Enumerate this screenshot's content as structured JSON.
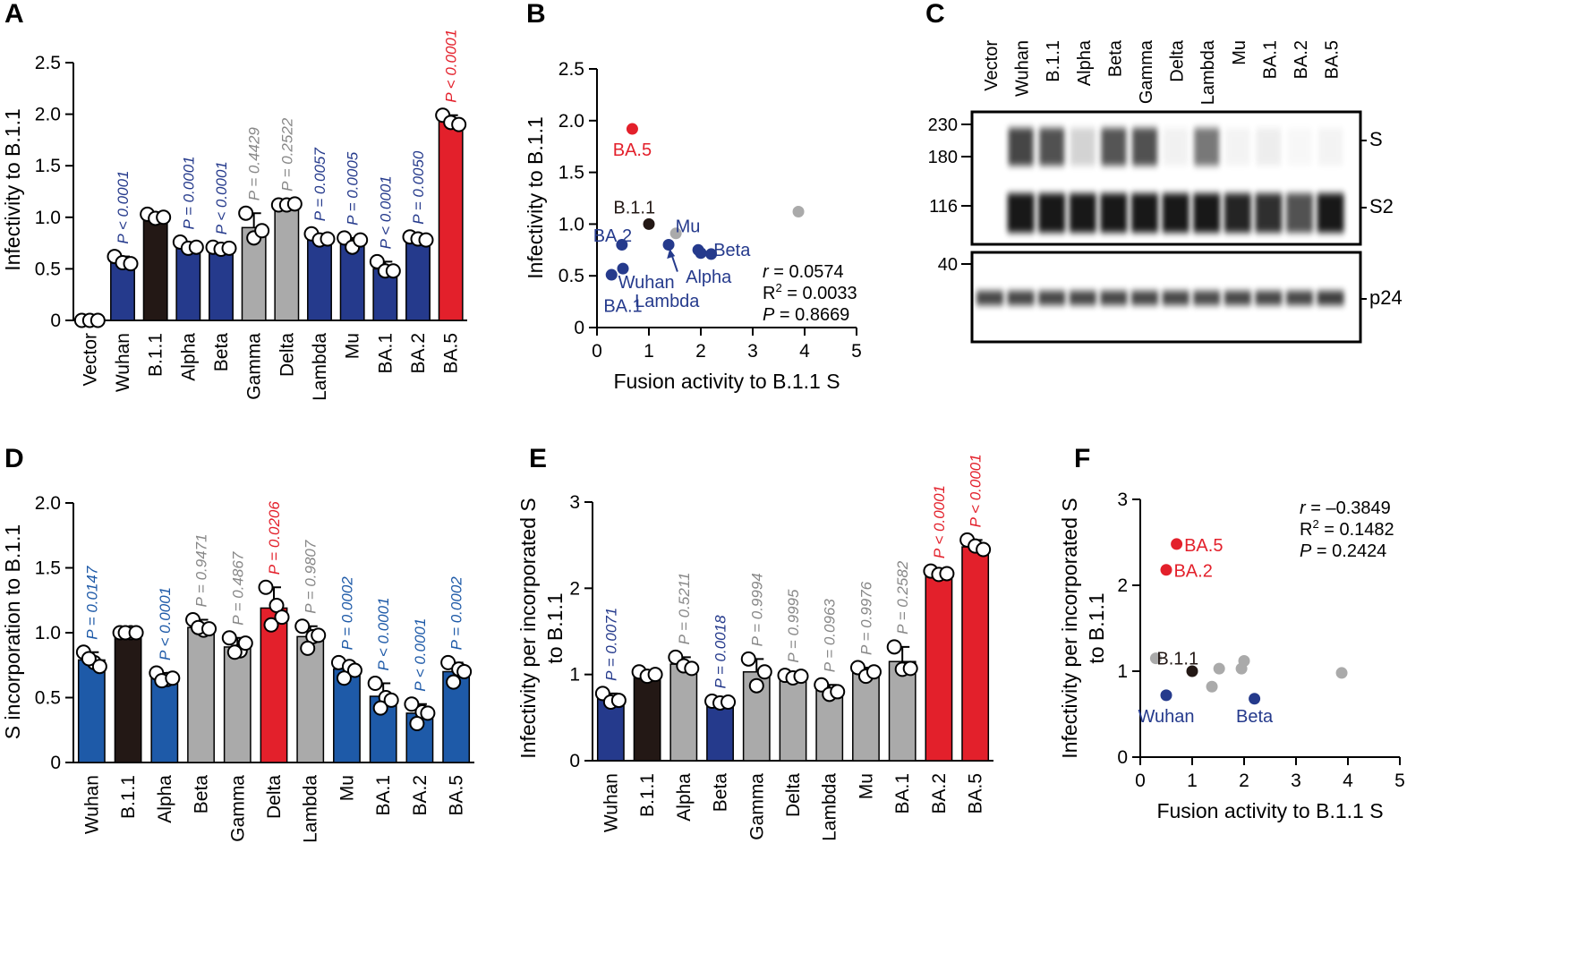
{
  "colors": {
    "blue": "#253a8c",
    "blue_d": "#1e5aa8",
    "black": "#231815",
    "gray": "#aaaaaa",
    "pgray": "#888888",
    "red": "#e3202b"
  },
  "panels": {
    "A": "A",
    "B": "B",
    "C": "C",
    "D": "D",
    "E": "E",
    "F": "F"
  },
  "chart_data": [
    {
      "id": "A",
      "type": "bar",
      "ylabel": "Infectivity to B.1.1",
      "ylim": [
        0,
        2.5
      ],
      "ticks": [
        0,
        0.5,
        1.0,
        1.5,
        2.0,
        2.5
      ],
      "tick_labels": [
        "0",
        "0.5",
        "1.0",
        "1.5",
        "2.0",
        "2.5"
      ],
      "bars": [
        {
          "label": "Vector",
          "value": 0.0,
          "points": [
            0.0,
            0.0,
            0.0
          ],
          "color": "blue",
          "p": ""
        },
        {
          "label": "Wuhan",
          "value": 0.57,
          "points": [
            0.62,
            0.56,
            0.55
          ],
          "color": "blue",
          "p": "P < 0.0001"
        },
        {
          "label": "B.1.1",
          "value": 1.0,
          "points": [
            1.03,
            0.99,
            1.0
          ],
          "color": "black",
          "p": ""
        },
        {
          "label": "Alpha",
          "value": 0.72,
          "points": [
            0.76,
            0.7,
            0.71
          ],
          "color": "blue",
          "p": "P = 0.0001"
        },
        {
          "label": "Beta",
          "value": 0.7,
          "points": [
            0.71,
            0.69,
            0.7
          ],
          "color": "blue",
          "p": "P < 0.0001"
        },
        {
          "label": "Gamma",
          "value": 0.9,
          "points": [
            1.04,
            0.8,
            0.87
          ],
          "color": "gray",
          "p": "P = 0.4429"
        },
        {
          "label": "Delta",
          "value": 1.12,
          "points": [
            1.12,
            1.12,
            1.13
          ],
          "color": "gray",
          "p": "P = 0.2522"
        },
        {
          "label": "Lambda",
          "value": 0.8,
          "points": [
            0.84,
            0.78,
            0.79
          ],
          "color": "blue",
          "p": "P = 0.0057"
        },
        {
          "label": "Mu",
          "value": 0.76,
          "points": [
            0.8,
            0.71,
            0.78
          ],
          "color": "blue",
          "p": "P = 0.0005"
        },
        {
          "label": "BA.1",
          "value": 0.5,
          "points": [
            0.57,
            0.48,
            0.48
          ],
          "color": "blue",
          "p": "P < 0.0001"
        },
        {
          "label": "BA.2",
          "value": 0.79,
          "points": [
            0.81,
            0.79,
            0.78
          ],
          "color": "blue",
          "p": "P = 0.0050"
        },
        {
          "label": "BA.5",
          "value": 1.93,
          "points": [
            1.99,
            1.92,
            1.9
          ],
          "color": "red",
          "p": "P < 0.0001"
        }
      ]
    },
    {
      "id": "B",
      "type": "scatter",
      "xlabel": "Fusion activity to B.1.1 S",
      "ylabel": "Infectivity to B.1.1",
      "xlim": [
        0,
        5
      ],
      "ylim": [
        0,
        2.5
      ],
      "xticks": [
        0,
        1,
        2,
        3,
        4,
        5
      ],
      "xtick_labels": [
        "0",
        "1",
        "2",
        "3",
        "4",
        "5"
      ],
      "yticks": [
        0,
        0.5,
        1.0,
        1.5,
        2.0,
        2.5
      ],
      "ytick_labels": [
        "0",
        "0.5",
        "1.0",
        "1.5",
        "2.0",
        "2.5"
      ],
      "points": [
        {
          "x": 0.68,
          "y": 1.92,
          "color": "red"
        },
        {
          "x": 1.0,
          "y": 1.0,
          "color": "black"
        },
        {
          "x": 0.48,
          "y": 0.8,
          "color": "blue"
        },
        {
          "x": 0.5,
          "y": 0.57,
          "color": "blue"
        },
        {
          "x": 0.28,
          "y": 0.51,
          "color": "blue"
        },
        {
          "x": 1.52,
          "y": 0.91,
          "color": "gray"
        },
        {
          "x": 1.38,
          "y": 0.8,
          "color": "blue"
        },
        {
          "x": 1.95,
          "y": 0.75,
          "color": "blue"
        },
        {
          "x": 2.0,
          "y": 0.72,
          "color": "blue"
        },
        {
          "x": 2.2,
          "y": 0.71,
          "color": "blue"
        },
        {
          "x": 3.88,
          "y": 1.12,
          "color": "gray"
        }
      ],
      "annotations": [
        {
          "text": "BA.5",
          "x": 0.68,
          "y": 1.73,
          "color": "red"
        },
        {
          "text": "B.1.1",
          "x": 0.72,
          "y": 1.17,
          "color": "black"
        },
        {
          "text": "BA.2",
          "x": 0.3,
          "y": 0.9,
          "color": "blue"
        },
        {
          "text": "Mu",
          "x": 1.75,
          "y": 0.99,
          "color": "blue"
        },
        {
          "text": "Beta",
          "x": 2.6,
          "y": 0.76,
          "color": "blue"
        },
        {
          "text": "Alpha",
          "x": 2.15,
          "y": 0.5,
          "color": "blue"
        },
        {
          "text": "Wuhan",
          "x": 0.95,
          "y": 0.45,
          "color": "blue"
        },
        {
          "text": "Lambda",
          "x": 1.35,
          "y": 0.27,
          "color": "blue"
        },
        {
          "text": "BA.1",
          "x": 0.5,
          "y": 0.22,
          "color": "blue"
        }
      ],
      "stats": {
        "r": "r",
        "r_val": " = 0.0574",
        "r2": "R",
        "r2_sup": "2",
        "r2_val": " = 0.0033",
        "p": "P",
        "p_val": " = 0.8669"
      }
    },
    {
      "id": "D",
      "type": "bar",
      "ylabel": "S incorporation to B.1.1",
      "ylim": [
        0,
        2.0
      ],
      "ticks": [
        0,
        0.5,
        1.0,
        1.5,
        2.0
      ],
      "tick_labels": [
        "0",
        "0.5",
        "1.0",
        "1.5",
        "2.0"
      ],
      "bars": [
        {
          "label": "Wuhan",
          "value": 0.79,
          "points": [
            0.85,
            0.77,
            0.8,
            0.74
          ],
          "color": "blue_d",
          "p": "P = 0.0147"
        },
        {
          "label": "B.1.1",
          "value": 1.0,
          "points": [
            1.0,
            1.0,
            1.0,
            1.0
          ],
          "color": "black",
          "p": ""
        },
        {
          "label": "Alpha",
          "value": 0.65,
          "points": [
            0.69,
            0.64,
            0.63,
            0.65
          ],
          "color": "blue_d",
          "p": "P < 0.0001"
        },
        {
          "label": "Beta",
          "value": 1.04,
          "points": [
            1.1,
            1.02,
            1.04,
            1.03
          ],
          "color": "gray",
          "p": "P = 0.9471"
        },
        {
          "label": "Gamma",
          "value": 0.89,
          "points": [
            0.96,
            0.86,
            0.85,
            0.92
          ],
          "color": "gray",
          "p": "P = 0.4867"
        },
        {
          "label": "Delta",
          "value": 1.19,
          "points": [
            1.35,
            1.21,
            1.06,
            1.12
          ],
          "color": "red",
          "p": "P = 0.0206"
        },
        {
          "label": "Lambda",
          "value": 0.97,
          "points": [
            1.05,
            0.97,
            0.88,
            0.98
          ],
          "color": "gray",
          "p": "P = 0.9807"
        },
        {
          "label": "Mu",
          "value": 0.72,
          "points": [
            0.77,
            0.74,
            0.65,
            0.71
          ],
          "color": "blue_d",
          "p": "P = 0.0002"
        },
        {
          "label": "BA.1",
          "value": 0.51,
          "points": [
            0.61,
            0.5,
            0.42,
            0.48
          ],
          "color": "blue_d",
          "p": "P < 0.0001"
        },
        {
          "label": "BA.2",
          "value": 0.38,
          "points": [
            0.45,
            0.39,
            0.3,
            0.38
          ],
          "color": "blue_d",
          "p": "P < 0.0001"
        },
        {
          "label": "BA.5",
          "value": 0.7,
          "points": [
            0.77,
            0.72,
            0.62,
            0.7
          ],
          "color": "blue_d",
          "p": "P = 0.0002"
        }
      ]
    },
    {
      "id": "E",
      "type": "bar",
      "ylabel": "Infectivity per incorporated S",
      "ylabel2": "to B.1.1",
      "ylim": [
        0,
        3
      ],
      "ticks": [
        0,
        1,
        2,
        3
      ],
      "tick_labels": [
        "0",
        "1",
        "2",
        "3"
      ],
      "bars": [
        {
          "label": "Wuhan",
          "value": 0.72,
          "points": [
            0.78,
            0.68,
            0.7
          ],
          "color": "blue",
          "p": "P = 0.0071"
        },
        {
          "label": "B.1.1",
          "value": 1.0,
          "points": [
            1.03,
            0.98,
            1.0
          ],
          "color": "black",
          "p": ""
        },
        {
          "label": "Alpha",
          "value": 1.12,
          "points": [
            1.2,
            1.1,
            1.07
          ],
          "color": "gray",
          "p": "P = 0.5211"
        },
        {
          "label": "Beta",
          "value": 0.68,
          "points": [
            0.69,
            0.67,
            0.68
          ],
          "color": "blue",
          "p": "P = 0.0018"
        },
        {
          "label": "Gamma",
          "value": 1.03,
          "points": [
            1.18,
            0.87,
            1.03
          ],
          "color": "gray",
          "p": "P = 0.9994"
        },
        {
          "label": "Delta",
          "value": 0.98,
          "points": [
            0.99,
            0.96,
            0.98
          ],
          "color": "gray",
          "p": "P = 0.9995"
        },
        {
          "label": "Lambda",
          "value": 0.82,
          "points": [
            0.88,
            0.77,
            0.8
          ],
          "color": "gray",
          "p": "P = 0.0963"
        },
        {
          "label": "Mu",
          "value": 1.03,
          "points": [
            1.08,
            0.98,
            1.03
          ],
          "color": "gray",
          "p": "P = 0.9976"
        },
        {
          "label": "BA.1",
          "value": 1.15,
          "points": [
            1.32,
            1.06,
            1.07
          ],
          "color": "gray",
          "p": "P = 0.2582"
        },
        {
          "label": "BA.2",
          "value": 2.18,
          "points": [
            2.2,
            2.16,
            2.17
          ],
          "color": "red",
          "p": "P < 0.0001"
        },
        {
          "label": "BA.5",
          "value": 2.48,
          "points": [
            2.56,
            2.49,
            2.45
          ],
          "color": "red",
          "p": "P < 0.0001"
        }
      ]
    },
    {
      "id": "F",
      "type": "scatter",
      "xlabel": "Fusion activity to B.1.1 S",
      "ylabel": "Infectivity per incorporated S",
      "ylabel2": "to B.1.1",
      "xlim": [
        0,
        5
      ],
      "ylim": [
        0,
        3
      ],
      "xticks": [
        0,
        1,
        2,
        3,
        4,
        5
      ],
      "xtick_labels": [
        "0",
        "1",
        "2",
        "3",
        "4",
        "5"
      ],
      "yticks": [
        0,
        1,
        2,
        3
      ],
      "ytick_labels": [
        "0",
        "1",
        "2",
        "3"
      ],
      "points": [
        {
          "x": 0.7,
          "y": 2.48,
          "color": "red"
        },
        {
          "x": 0.5,
          "y": 2.18,
          "color": "red"
        },
        {
          "x": 1.0,
          "y": 1.0,
          "color": "black"
        },
        {
          "x": 0.3,
          "y": 1.15,
          "color": "gray"
        },
        {
          "x": 1.52,
          "y": 1.03,
          "color": "gray"
        },
        {
          "x": 1.38,
          "y": 0.82,
          "color": "gray"
        },
        {
          "x": 1.95,
          "y": 1.03,
          "color": "gray"
        },
        {
          "x": 2.0,
          "y": 1.12,
          "color": "gray"
        },
        {
          "x": 3.88,
          "y": 0.98,
          "color": "gray"
        },
        {
          "x": 0.5,
          "y": 0.72,
          "color": "blue"
        },
        {
          "x": 2.2,
          "y": 0.68,
          "color": "blue"
        }
      ],
      "annotations": [
        {
          "text": "BA.5",
          "x": 1.22,
          "y": 2.48,
          "color": "red"
        },
        {
          "text": "BA.2",
          "x": 1.02,
          "y": 2.18,
          "color": "red"
        },
        {
          "text": "B.1.1",
          "x": 0.72,
          "y": 1.16,
          "color": "black"
        },
        {
          "text": "Wuhan",
          "x": 0.5,
          "y": 0.49,
          "color": "blue"
        },
        {
          "text": "Beta",
          "x": 2.2,
          "y": 0.49,
          "color": "blue"
        }
      ],
      "stats": {
        "r": "r",
        "r_val": " = –0.3849",
        "r2": "R",
        "r2_sup": "2",
        "r2_val": " = 0.1482",
        "p": "P",
        "p_val": " = 0.2424"
      }
    }
  ],
  "blot": {
    "lanes": [
      "Vector",
      "Wuhan",
      "B.1.1",
      "Alpha",
      "Beta",
      "Gamma",
      "Delta",
      "Lambda",
      "Mu",
      "BA.1",
      "BA.2",
      "BA.5"
    ],
    "markers": [
      "230",
      "180",
      "116",
      "40"
    ],
    "band_labels": [
      "S",
      "S2",
      "p24"
    ],
    "s_intensity": [
      0,
      0.85,
      0.8,
      0.2,
      0.78,
      0.8,
      0.06,
      0.62,
      0.05,
      0.08,
      0.03,
      0.05
    ],
    "s2_intensity": [
      0,
      1.0,
      1.0,
      1.0,
      1.0,
      1.0,
      1.0,
      1.0,
      0.95,
      0.9,
      0.75,
      1.0
    ],
    "p24_intensity": [
      0.9,
      0.9,
      0.9,
      0.9,
      0.9,
      0.9,
      0.9,
      0.88,
      0.9,
      0.9,
      0.9,
      0.95
    ]
  }
}
